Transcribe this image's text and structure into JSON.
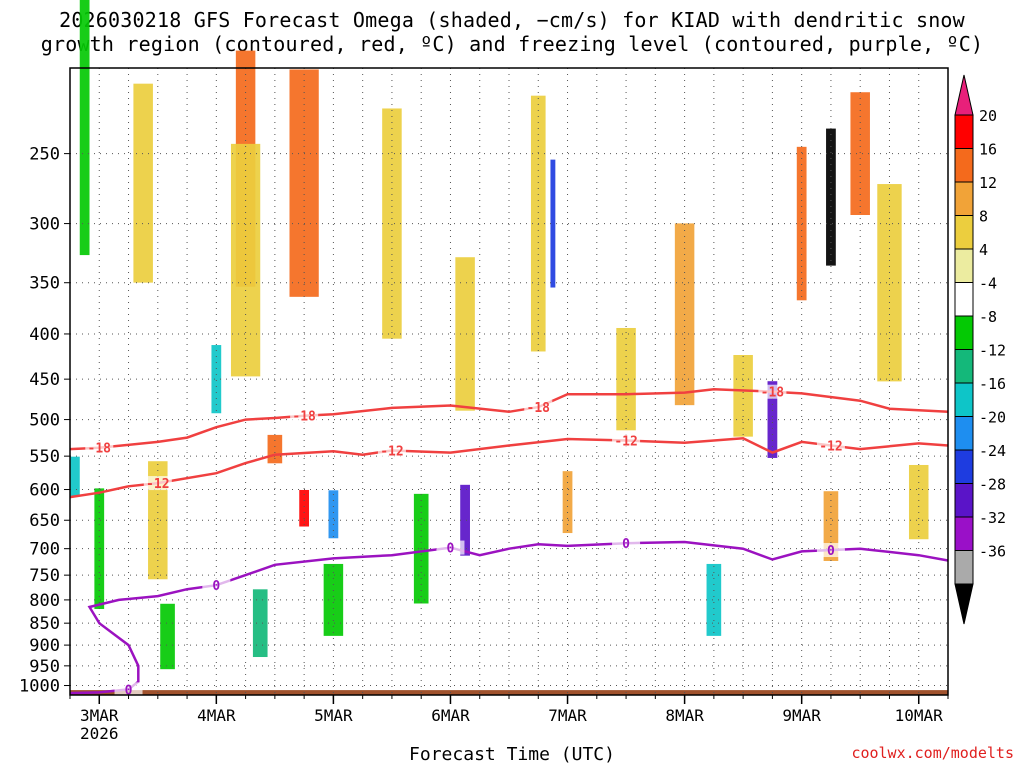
{
  "title_line1": "2026030218 GFS Forecast Omega (shaded, −cm/s) for KIAD with dendritic snow",
  "title_line2": "growth region (contoured, red, ºC) and freezing level (contoured, purple, ºC)",
  "xlabel": "Forecast Time (UTC)",
  "credit": "coolwx.com/modelts",
  "chart_data": {
    "type": "heatmap",
    "title": "2026030218 GFS Forecast Omega (shaded, −cm/s) for KIAD with dendritic snow growth region (contoured, red, ºC) and freezing level (contoured, purple, ºC)",
    "xlabel": "Forecast Time (UTC)",
    "ylabel": "",
    "y_scale": "log (pressure, inverted)",
    "ylim": [
      1025,
      200
    ],
    "y_ticks": [
      250,
      300,
      350,
      400,
      450,
      500,
      550,
      600,
      650,
      700,
      750,
      800,
      850,
      900,
      950,
      1000
    ],
    "x_range": [
      "2026-03-02 18Z",
      "2026-03-10 06Z"
    ],
    "x_ticks": [
      {
        "label": "3MAR",
        "sub": "2026",
        "time": "2026-03-03 00Z"
      },
      {
        "label": "4MAR",
        "time": "2026-03-04 00Z"
      },
      {
        "label": "5MAR",
        "time": "2026-03-05 00Z"
      },
      {
        "label": "6MAR",
        "time": "2026-03-06 00Z"
      },
      {
        "label": "7MAR",
        "time": "2026-03-07 00Z"
      },
      {
        "label": "8MAR",
        "time": "2026-03-08 00Z"
      },
      {
        "label": "9MAR",
        "time": "2026-03-09 00Z"
      },
      {
        "label": "10MAR",
        "time": "2026-03-10 00Z"
      }
    ],
    "grid": true,
    "colorbar": {
      "placement": "right",
      "labels": [
        "20",
        "16",
        "12",
        "8",
        "4",
        "-4",
        "-8",
        "-12",
        "-16",
        "-20",
        "-24",
        "-28",
        "-32",
        "-36"
      ],
      "colors": [
        "#ff0000",
        "#f46a1c",
        "#f1a338",
        "#ecce3e",
        "#ececa0",
        "#ffffff",
        "#04c904",
        "#14b87a",
        "#0ec5c8",
        "#1e8ef0",
        "#1e3ce0",
        "#5a14c8",
        "#9a10c8",
        "#aaaaaa",
        "#000000"
      ]
    },
    "series": [
      {
        "name": "-18",
        "kind": "dendritic-contour",
        "color": "#f04040",
        "label_times": [
          "2026-03-03 00Z",
          "2026-03-04 18Z",
          "2026-03-06 18Z",
          "2026-03-08 18Z"
        ],
        "points": [
          [
            "2026-03-02 18Z",
            540
          ],
          [
            "2026-03-03 00Z",
            538
          ],
          [
            "2026-03-03 12Z",
            530
          ],
          [
            "2026-03-03 18Z",
            524
          ],
          [
            "2026-03-04 00Z",
            510
          ],
          [
            "2026-03-04 06Z",
            500
          ],
          [
            "2026-03-04 12Z",
            498
          ],
          [
            "2026-03-04 18Z",
            495
          ],
          [
            "2026-03-05 00Z",
            493
          ],
          [
            "2026-03-05 12Z",
            485
          ],
          [
            "2026-03-06 00Z",
            482
          ],
          [
            "2026-03-06 12Z",
            490
          ],
          [
            "2026-03-06 18Z",
            484
          ],
          [
            "2026-03-07 00Z",
            468
          ],
          [
            "2026-03-07 12Z",
            468
          ],
          [
            "2026-03-08 00Z",
            466
          ],
          [
            "2026-03-08 06Z",
            462
          ],
          [
            "2026-03-08 18Z",
            465
          ],
          [
            "2026-03-09 00Z",
            467
          ],
          [
            "2026-03-09 12Z",
            476
          ],
          [
            "2026-03-09 18Z",
            486
          ],
          [
            "2026-03-10 06Z",
            490
          ]
        ]
      },
      {
        "name": "-12",
        "kind": "dendritic-contour",
        "color": "#f04040",
        "label_times": [
          "2026-03-03 12Z",
          "2026-03-05 12Z",
          "2026-03-07 12Z",
          "2026-03-09 06Z"
        ],
        "points": [
          [
            "2026-03-02 18Z",
            612
          ],
          [
            "2026-03-03 00Z",
            605
          ],
          [
            "2026-03-03 06Z",
            595
          ],
          [
            "2026-03-03 12Z",
            590
          ],
          [
            "2026-03-04 00Z",
            575
          ],
          [
            "2026-03-04 06Z",
            560
          ],
          [
            "2026-03-04 12Z",
            548
          ],
          [
            "2026-03-05 00Z",
            543
          ],
          [
            "2026-03-05 06Z",
            548
          ],
          [
            "2026-03-05 12Z",
            542
          ],
          [
            "2026-03-06 00Z",
            545
          ],
          [
            "2026-03-06 12Z",
            535
          ],
          [
            "2026-03-07 00Z",
            526
          ],
          [
            "2026-03-07 12Z",
            528
          ],
          [
            "2026-03-08 00Z",
            531
          ],
          [
            "2026-03-08 12Z",
            525
          ],
          [
            "2026-03-08 18Z",
            545
          ],
          [
            "2026-03-09 00Z",
            530
          ],
          [
            "2026-03-09 12Z",
            540
          ],
          [
            "2026-03-10 00Z",
            532
          ],
          [
            "2026-03-10 06Z",
            535
          ]
        ]
      },
      {
        "name": "0",
        "kind": "freezing-level",
        "color": "#9b12c0",
        "label_times": [
          "2026-03-03 06Z",
          "2026-03-04 00Z",
          "2026-03-06 00Z",
          "2026-03-07 12Z",
          "2026-03-09 06Z"
        ],
        "points": [
          [
            "2026-03-02 18Z",
            1020
          ],
          [
            "2026-03-03 00Z",
            1018
          ],
          [
            "2026-03-03 06Z",
            1010
          ],
          [
            "2026-03-03 08Z",
            990
          ],
          [
            "2026-03-03 08Z",
            950
          ],
          [
            "2026-03-03 06Z",
            900
          ],
          [
            "2026-03-03 00Z",
            850
          ],
          [
            "2026-03-02 22Z",
            815
          ],
          [
            "2026-03-03 04Z",
            800
          ],
          [
            "2026-03-03 12Z",
            792
          ],
          [
            "2026-03-03 18Z",
            778
          ],
          [
            "2026-03-04 00Z",
            770
          ],
          [
            "2026-03-04 06Z",
            750
          ],
          [
            "2026-03-04 12Z",
            730
          ],
          [
            "2026-03-05 00Z",
            718
          ],
          [
            "2026-03-05 12Z",
            712
          ],
          [
            "2026-03-06 00Z",
            698
          ],
          [
            "2026-03-06 06Z",
            712
          ],
          [
            "2026-03-06 12Z",
            700
          ],
          [
            "2026-03-06 18Z",
            692
          ],
          [
            "2026-03-07 00Z",
            695
          ],
          [
            "2026-03-07 12Z",
            690
          ],
          [
            "2026-03-08 00Z",
            688
          ],
          [
            "2026-03-08 12Z",
            700
          ],
          [
            "2026-03-08 18Z",
            720
          ],
          [
            "2026-03-09 00Z",
            705
          ],
          [
            "2026-03-09 12Z",
            700
          ],
          [
            "2026-03-10 00Z",
            712
          ],
          [
            "2026-03-10 06Z",
            722
          ]
        ]
      }
    ],
    "omega_cells": [
      {
        "t": "2026-03-02 21Z",
        "p": 230,
        "v": -8,
        "dt": 2,
        "hp": 160
      },
      {
        "t": "2026-03-03 00Z",
        "p": 700,
        "v": -10,
        "dt": 2,
        "hp": 220
      },
      {
        "t": "2026-03-02 19Z",
        "p": 580,
        "v": -16,
        "dt": 2,
        "hp": 60
      },
      {
        "t": "2026-03-03 09Z",
        "p": 270,
        "v": 6,
        "dt": 4,
        "hp": 140
      },
      {
        "t": "2026-03-03 12Z",
        "p": 650,
        "v": 6,
        "dt": 4,
        "hp": 200
      },
      {
        "t": "2026-03-03 14Z",
        "p": 880,
        "v": -8,
        "dt": 3,
        "hp": 150
      },
      {
        "t": "2026-03-04 00Z",
        "p": 450,
        "v": -16,
        "dt": 2,
        "hp": 80
      },
      {
        "t": "2026-03-04 06Z",
        "p": 260,
        "v": 16,
        "dt": 4,
        "hp": 160
      },
      {
        "t": "2026-03-04 06Z",
        "p": 330,
        "v": 8,
        "dt": 6,
        "hp": 200
      },
      {
        "t": "2026-03-04 09Z",
        "p": 850,
        "v": -14,
        "dt": 3,
        "hp": 150
      },
      {
        "t": "2026-03-04 12Z",
        "p": 540,
        "v": 16,
        "dt": 3,
        "hp": 40
      },
      {
        "t": "2026-03-04 18Z",
        "p": 270,
        "v": 14,
        "dt": 6,
        "hp": 160
      },
      {
        "t": "2026-03-04 18Z",
        "p": 630,
        "v": 18,
        "dt": 2,
        "hp": 60
      },
      {
        "t": "2026-03-05 00Z",
        "p": 640,
        "v": -20,
        "dt": 2,
        "hp": 80
      },
      {
        "t": "2026-03-05 00Z",
        "p": 800,
        "v": -10,
        "dt": 4,
        "hp": 150
      },
      {
        "t": "2026-03-05 12Z",
        "p": 300,
        "v": 6,
        "dt": 4,
        "hp": 180
      },
      {
        "t": "2026-03-05 18Z",
        "p": 700,
        "v": -8,
        "dt": 3,
        "hp": 200
      },
      {
        "t": "2026-03-06 03Z",
        "p": 400,
        "v": 8,
        "dt": 4,
        "hp": 160
      },
      {
        "t": "2026-03-06 03Z",
        "p": 650,
        "v": -28,
        "dt": 2,
        "hp": 120
      },
      {
        "t": "2026-03-06 18Z",
        "p": 300,
        "v": 6,
        "dt": 3,
        "hp": 200
      },
      {
        "t": "2026-03-06 21Z",
        "p": 300,
        "v": -24,
        "dt": 1,
        "hp": 100
      },
      {
        "t": "2026-03-07 00Z",
        "p": 620,
        "v": 12,
        "dt": 2,
        "hp": 100
      },
      {
        "t": "2026-03-07 12Z",
        "p": 450,
        "v": 6,
        "dt": 4,
        "hp": 120
      },
      {
        "t": "2026-03-08 00Z",
        "p": 380,
        "v": 10,
        "dt": 4,
        "hp": 180
      },
      {
        "t": "2026-03-08 06Z",
        "p": 800,
        "v": -16,
        "dt": 3,
        "hp": 150
      },
      {
        "t": "2026-03-08 12Z",
        "p": 470,
        "v": 6,
        "dt": 4,
        "hp": 100
      },
      {
        "t": "2026-03-08 18Z",
        "p": 500,
        "v": -28,
        "dt": 2,
        "hp": 100
      },
      {
        "t": "2026-03-09 00Z",
        "p": 300,
        "v": 16,
        "dt": 2,
        "hp": 120
      },
      {
        "t": "2026-03-09 06Z",
        "p": 280,
        "v": -36,
        "dt": 2,
        "hp": 100
      },
      {
        "t": "2026-03-09 06Z",
        "p": 660,
        "v": 12,
        "dt": 3,
        "hp": 120
      },
      {
        "t": "2026-03-09 12Z",
        "p": 250,
        "v": 16,
        "dt": 4,
        "hp": 80
      },
      {
        "t": "2026-03-09 18Z",
        "p": 350,
        "v": 8,
        "dt": 5,
        "hp": 180
      },
      {
        "t": "2026-03-10 00Z",
        "p": 620,
        "v": 6,
        "dt": 4,
        "hp": 120
      }
    ]
  }
}
